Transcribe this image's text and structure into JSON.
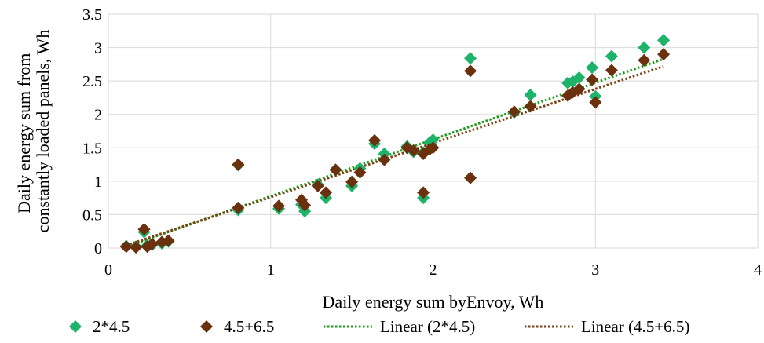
{
  "chart_data": {
    "type": "scatter",
    "title": "",
    "xlabel": "Daily energy sum byEnvoy, Wh",
    "ylabel_lines": [
      "Daily energy sum from",
      "constantly loaded panels, Wh"
    ],
    "xlim": [
      0,
      4
    ],
    "ylim": [
      0,
      3.5
    ],
    "xticks": [
      0,
      1,
      2,
      3,
      4
    ],
    "xtick_labels": [
      "0",
      "1",
      "2",
      "3",
      "4"
    ],
    "yticks": [
      0,
      0.5,
      1,
      1.5,
      2,
      2.5,
      3,
      3.5
    ],
    "ytick_labels": [
      "0",
      "0.5",
      "1",
      "1.5",
      "2",
      "2.5",
      "3",
      "3.5"
    ],
    "grid": true,
    "legend_position": "bottom",
    "series": [
      {
        "name": "2*4.5",
        "kind": "points",
        "marker": "diamond",
        "color": "#1db36a",
        "x": [
          0.11,
          0.17,
          0.22,
          0.24,
          0.27,
          0.33,
          0.37,
          0.8,
          0.8,
          1.05,
          1.19,
          1.21,
          1.29,
          1.34,
          1.4,
          1.5,
          1.55,
          1.64,
          1.7,
          1.84,
          1.88,
          1.94,
          1.94,
          1.98,
          2.0,
          2.23,
          2.23,
          2.5,
          2.6,
          2.83,
          2.86,
          2.9,
          2.98,
          3.0,
          3.1,
          3.3,
          3.42
        ],
        "y": [
          0.03,
          0.02,
          0.24,
          0.04,
          0.05,
          0.07,
          0.1,
          1.24,
          0.57,
          0.59,
          0.65,
          0.55,
          0.95,
          0.75,
          1.17,
          0.93,
          1.19,
          1.56,
          1.41,
          1.52,
          1.44,
          1.43,
          0.75,
          1.58,
          1.62,
          2.84,
          1.05,
          2.03,
          2.29,
          2.47,
          2.49,
          2.55,
          2.7,
          2.27,
          2.87,
          3.0,
          3.11
        ]
      },
      {
        "name": "4.5+6.5",
        "kind": "points",
        "marker": "diamond",
        "color": "#6b300d",
        "x": [
          0.11,
          0.17,
          0.22,
          0.24,
          0.27,
          0.33,
          0.37,
          0.8,
          0.8,
          1.05,
          1.19,
          1.21,
          1.29,
          1.34,
          1.4,
          1.5,
          1.55,
          1.64,
          1.7,
          1.84,
          1.88,
          1.94,
          1.94,
          1.98,
          2.0,
          2.23,
          2.23,
          2.5,
          2.6,
          2.83,
          2.86,
          2.9,
          2.98,
          3.0,
          3.1,
          3.3,
          3.42
        ],
        "y": [
          0.02,
          0.01,
          0.28,
          0.02,
          0.06,
          0.09,
          0.11,
          1.25,
          0.6,
          0.63,
          0.72,
          0.64,
          0.93,
          0.83,
          1.17,
          0.99,
          1.13,
          1.61,
          1.32,
          1.5,
          1.46,
          1.41,
          0.83,
          1.48,
          1.5,
          2.65,
          1.05,
          2.04,
          2.12,
          2.28,
          2.33,
          2.38,
          2.52,
          2.18,
          2.66,
          2.81,
          2.9
        ]
      },
      {
        "name": "Linear (2*4.5)",
        "kind": "trendline",
        "style": "dotted",
        "color": "#1a9e1a",
        "x": [
          0.11,
          3.42
        ],
        "y": [
          0.02,
          2.83
        ]
      },
      {
        "name": "Linear (4.5+6.5)",
        "kind": "trendline",
        "style": "dotted",
        "color": "#7a4010",
        "x": [
          0.11,
          3.42
        ],
        "y": [
          0.04,
          2.72
        ]
      }
    ]
  }
}
